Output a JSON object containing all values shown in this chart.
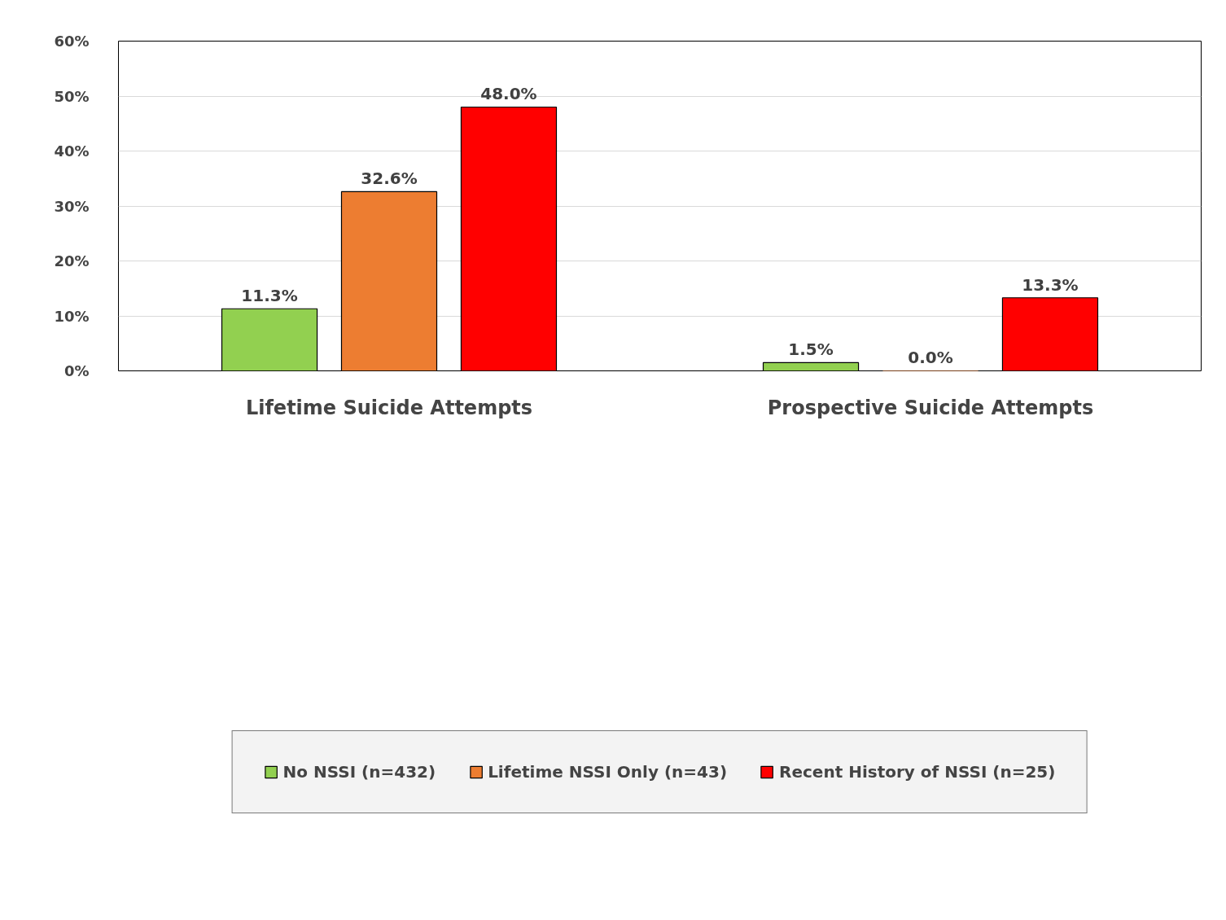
{
  "chart_data": {
    "type": "bar",
    "categories": [
      "Lifetime Suicide Attempts",
      "Prospective Suicide Attempts"
    ],
    "series": [
      {
        "name": "No NSSI (n=432)",
        "color": "#92d050",
        "values": [
          11.3,
          1.5
        ],
        "value_labels": [
          "11.3%",
          "1.5%"
        ]
      },
      {
        "name": "Lifetime NSSI Only (n=43)",
        "color": "#ed7d31",
        "values": [
          32.6,
          0.0
        ],
        "value_labels": [
          "32.6%",
          "0.0%"
        ]
      },
      {
        "name": "Recent History of NSSI (n=25)",
        "color": "#ff0000",
        "values": [
          48.0,
          13.3
        ],
        "value_labels": [
          "48.0%",
          "13.3%"
        ]
      }
    ],
    "ylim": [
      0,
      60
    ],
    "yticks": [
      {
        "value": 0,
        "label": "0%"
      },
      {
        "value": 10,
        "label": "10%"
      },
      {
        "value": 20,
        "label": "20%"
      },
      {
        "value": 30,
        "label": "30%"
      },
      {
        "value": 40,
        "label": "40%"
      },
      {
        "value": 50,
        "label": "50%"
      },
      {
        "value": 60,
        "label": "60%"
      }
    ],
    "grid": "y",
    "legend": "bottom"
  }
}
